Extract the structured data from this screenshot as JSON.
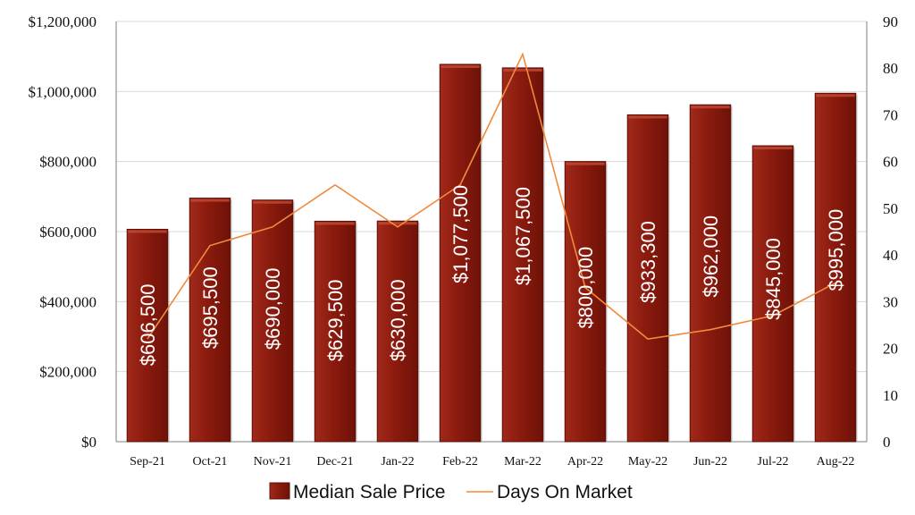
{
  "chart_data": {
    "type": "bar",
    "categories": [
      "Sep-21",
      "Oct-21",
      "Nov-21",
      "Dec-21",
      "Jan-22",
      "Feb-22",
      "Mar-22",
      "Apr-22",
      "May-22",
      "Jun-22",
      "Jul-22",
      "Aug-22"
    ],
    "series": [
      {
        "name": "Median Sale Price",
        "type": "bar",
        "axis": "left",
        "values": [
          606500,
          695500,
          690000,
          629500,
          630000,
          1077500,
          1067500,
          800000,
          933300,
          962000,
          845000,
          995000
        ],
        "labels": [
          "$606,500",
          "$695,500",
          "$690,000",
          "$629,500",
          "$630,000",
          "$1,077,500",
          "$1,067,500",
          "$800,000",
          "$933,300",
          "$962,000",
          "$845,000",
          "$995,000"
        ]
      },
      {
        "name": "Days On Market",
        "type": "line",
        "axis": "right",
        "values": [
          22,
          42,
          46,
          55,
          46,
          55,
          83,
          33,
          22,
          24,
          27,
          34
        ]
      }
    ],
    "y_left": {
      "lim": [
        0,
        1200000
      ],
      "ticks": [
        0,
        200000,
        400000,
        600000,
        800000,
        1000000,
        1200000
      ],
      "tick_labels": [
        "$0",
        "$200,000",
        "$400,000",
        "$600,000",
        "$800,000",
        "$1,000,000",
        "$1,200,000"
      ]
    },
    "y_right": {
      "lim": [
        0,
        90
      ],
      "ticks": [
        0,
        10,
        20,
        30,
        40,
        50,
        60,
        70,
        80,
        90
      ],
      "tick_labels": [
        "0",
        "10",
        "20",
        "30",
        "40",
        "50",
        "60",
        "70",
        "80",
        "90"
      ]
    },
    "grid": true,
    "legend": "bottom-center",
    "colors": {
      "bar": "#8b1a0e",
      "bar_highlight": "#c44a33",
      "bar_shadow": "#5a0f07",
      "line": "#f08a3c",
      "grid": "#d9d9d9",
      "axis": "#7f7f7f"
    }
  }
}
